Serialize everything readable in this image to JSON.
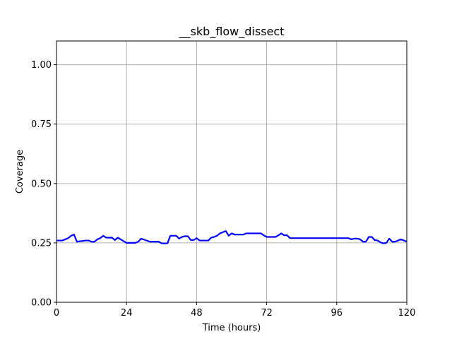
{
  "chart_data": {
    "type": "line",
    "title": "__skb_flow_dissect",
    "xlabel": "Time (hours)",
    "ylabel": "Coverage",
    "xlim": [
      0,
      120
    ],
    "ylim": [
      0,
      1.1
    ],
    "xticks": [
      0,
      24,
      48,
      72,
      96,
      120
    ],
    "xtick_labels": [
      "0",
      "24",
      "48",
      "72",
      "96",
      "120"
    ],
    "yticks": [
      0.0,
      0.25,
      0.5,
      0.75,
      1.0
    ],
    "ytick_labels": [
      "0.00",
      "0.25",
      "0.50",
      "0.75",
      "1.00"
    ],
    "grid": true,
    "series": [
      {
        "color": "#0000ff",
        "x": [
          0,
          2,
          3,
          4,
          5,
          6,
          7,
          10,
          11,
          12,
          13,
          14,
          15,
          16,
          17,
          18,
          19,
          20,
          21,
          24,
          25,
          26,
          27,
          28,
          29,
          32,
          33,
          35,
          36,
          37,
          38,
          39,
          41,
          42,
          43,
          44,
          45,
          46,
          47,
          48,
          49,
          50,
          52,
          53,
          54,
          55,
          56,
          57,
          58,
          59,
          60,
          61,
          62,
          63,
          64,
          65,
          66,
          67,
          68,
          69,
          70,
          71,
          72,
          73,
          74,
          75,
          76,
          77,
          78,
          79,
          80,
          85,
          90,
          95,
          100,
          101,
          102,
          103,
          104,
          105,
          106,
          107,
          108,
          109,
          110,
          111,
          112,
          113,
          114,
          115,
          116,
          117,
          118,
          119,
          120
        ],
        "y": [
          0.26,
          0.26,
          0.265,
          0.27,
          0.28,
          0.285,
          0.255,
          0.26,
          0.26,
          0.255,
          0.255,
          0.265,
          0.27,
          0.28,
          0.272,
          0.272,
          0.272,
          0.262,
          0.272,
          0.25,
          0.25,
          0.25,
          0.25,
          0.255,
          0.268,
          0.255,
          0.255,
          0.255,
          0.248,
          0.248,
          0.248,
          0.28,
          0.28,
          0.268,
          0.275,
          0.278,
          0.278,
          0.262,
          0.262,
          0.27,
          0.26,
          0.26,
          0.26,
          0.272,
          0.275,
          0.28,
          0.29,
          0.295,
          0.3,
          0.28,
          0.29,
          0.285,
          0.285,
          0.285,
          0.285,
          0.29,
          0.29,
          0.29,
          0.29,
          0.29,
          0.29,
          0.282,
          0.275,
          0.275,
          0.275,
          0.275,
          0.282,
          0.29,
          0.282,
          0.282,
          0.27,
          0.27,
          0.27,
          0.27,
          0.27,
          0.265,
          0.268,
          0.268,
          0.265,
          0.255,
          0.255,
          0.275,
          0.275,
          0.262,
          0.26,
          0.252,
          0.248,
          0.25,
          0.268,
          0.255,
          0.255,
          0.26,
          0.265,
          0.26,
          0.255
        ]
      }
    ]
  }
}
